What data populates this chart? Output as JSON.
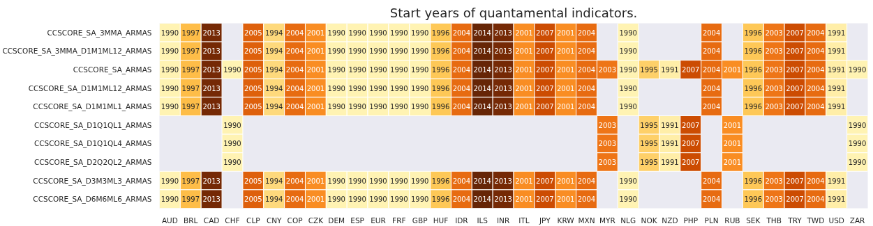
{
  "chart_data": {
    "type": "heatmap",
    "data_labels": true,
    "title": "Start years of quantamental indicators.",
    "categories": [
      "AUD",
      "BRL",
      "CAD",
      "CHF",
      "CLP",
      "CNY",
      "COP",
      "CZK",
      "DEM",
      "ESP",
      "EUR",
      "FRF",
      "GBP",
      "HUF",
      "IDR",
      "ILS",
      "INR",
      "ITL",
      "JPY",
      "KRW",
      "MXN",
      "MYR",
      "NLG",
      "NOK",
      "NZD",
      "PHP",
      "PLN",
      "RUB",
      "SEK",
      "THB",
      "TRY",
      "TWD",
      "USD",
      "ZAR"
    ],
    "y_categories": [
      "CCSCORE_SA_3MMA_ARMAS",
      "CCSCORE_SA_3MMA_D1M1ML12_ARMAS",
      "CCSCORE_SA_ARMAS",
      "CCSCORE_SA_D1M1ML12_ARMAS",
      "CCSCORE_SA_D1M1ML1_ARMAS",
      "CCSCORE_SA_D1Q1QL1_ARMAS",
      "CCSCORE_SA_D1Q1QL4_ARMAS",
      "CCSCORE_SA_D2Q2QL2_ARMAS",
      "CCSCORE_SA_D3M3ML3_ARMAS",
      "CCSCORE_SA_D6M6ML6_ARMAS"
    ],
    "cells": [
      [
        1990,
        1997,
        2013,
        null,
        2005,
        1994,
        2004,
        2001,
        1990,
        1990,
        1990,
        1990,
        1990,
        1996,
        2004,
        2014,
        2013,
        2001,
        2007,
        2001,
        2004,
        null,
        1990,
        null,
        null,
        null,
        2004,
        null,
        1996,
        2003,
        2007,
        2004,
        1991,
        null
      ],
      [
        1990,
        1997,
        2013,
        null,
        2005,
        1994,
        2004,
        2001,
        1990,
        1990,
        1990,
        1990,
        1990,
        1996,
        2004,
        2014,
        2013,
        2001,
        2007,
        2001,
        2004,
        null,
        1990,
        null,
        null,
        null,
        2004,
        null,
        1996,
        2003,
        2007,
        2004,
        1991,
        null
      ],
      [
        1990,
        1997,
        2013,
        1990,
        2005,
        1994,
        2004,
        2001,
        1990,
        1990,
        1990,
        1990,
        1990,
        1996,
        2004,
        2014,
        2013,
        2001,
        2007,
        2001,
        2004,
        2003,
        1990,
        1995,
        1991,
        2007,
        2004,
        2001,
        1996,
        2003,
        2007,
        2004,
        1991,
        1990
      ],
      [
        1990,
        1997,
        2013,
        null,
        2005,
        1994,
        2004,
        2001,
        1990,
        1990,
        1990,
        1990,
        1990,
        1996,
        2004,
        2014,
        2013,
        2001,
        2007,
        2001,
        2004,
        null,
        1990,
        null,
        null,
        null,
        2004,
        null,
        1996,
        2003,
        2007,
        2004,
        1991,
        null
      ],
      [
        1990,
        1997,
        2013,
        null,
        2005,
        1994,
        2004,
        2001,
        1990,
        1990,
        1990,
        1990,
        1990,
        1996,
        2004,
        2014,
        2013,
        2001,
        2007,
        2001,
        2004,
        null,
        1990,
        null,
        null,
        null,
        2004,
        null,
        1996,
        2003,
        2007,
        2004,
        1991,
        null
      ],
      [
        null,
        null,
        null,
        1990,
        null,
        null,
        null,
        null,
        null,
        null,
        null,
        null,
        null,
        null,
        null,
        null,
        null,
        null,
        null,
        null,
        null,
        2003,
        null,
        1995,
        1991,
        2007,
        null,
        2001,
        null,
        null,
        null,
        null,
        null,
        1990
      ],
      [
        null,
        null,
        null,
        1990,
        null,
        null,
        null,
        null,
        null,
        null,
        null,
        null,
        null,
        null,
        null,
        null,
        null,
        null,
        null,
        null,
        null,
        2003,
        null,
        1995,
        1991,
        2007,
        null,
        2001,
        null,
        null,
        null,
        null,
        null,
        1990
      ],
      [
        null,
        null,
        null,
        1990,
        null,
        null,
        null,
        null,
        null,
        null,
        null,
        null,
        null,
        null,
        null,
        null,
        null,
        null,
        null,
        null,
        null,
        2003,
        null,
        1995,
        1991,
        2007,
        null,
        2001,
        null,
        null,
        null,
        null,
        null,
        1990
      ],
      [
        1990,
        1997,
        2013,
        null,
        2005,
        1994,
        2004,
        2001,
        1990,
        1990,
        1990,
        1990,
        1990,
        1996,
        2004,
        2014,
        2013,
        2001,
        2007,
        2001,
        2004,
        null,
        1990,
        null,
        null,
        null,
        2004,
        null,
        1996,
        2003,
        2007,
        2004,
        1991,
        null
      ],
      [
        1990,
        1997,
        2013,
        null,
        2005,
        1994,
        2004,
        2001,
        1990,
        1990,
        1990,
        1990,
        1990,
        1996,
        2004,
        2014,
        2013,
        2001,
        2007,
        2001,
        2004,
        null,
        1990,
        null,
        null,
        null,
        2004,
        null,
        1996,
        2003,
        2007,
        2004,
        1991,
        null
      ]
    ]
  }
}
